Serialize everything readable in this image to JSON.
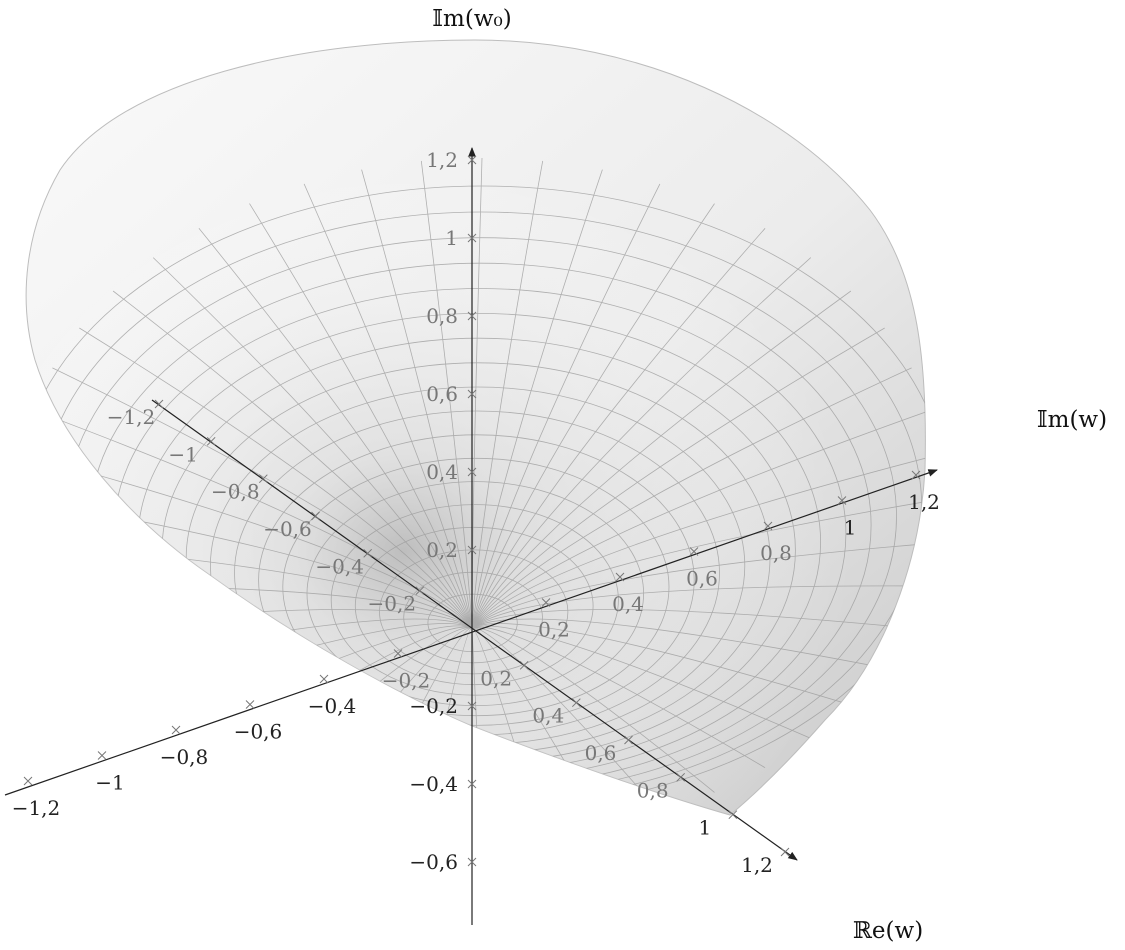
{
  "axes": {
    "im_w0": {
      "title": "𝕀m(w₀)",
      "ticks": [
        "1,2",
        "1",
        "0,8",
        "0,6",
        "0,4",
        "0,2",
        "−0,2",
        "−0,4",
        "−0,6"
      ]
    },
    "im_w": {
      "title": "𝕀m(w)",
      "ticks": [
        "1,2",
        "1",
        "0,8",
        "0,6",
        "0,4",
        "0,2",
        "−0,2",
        "−0,4",
        "−0,6",
        "−0,8",
        "−1",
        "−1,2"
      ]
    },
    "re_w": {
      "title": "ℝe(w)",
      "ticks": [
        "1,2",
        "1",
        "0,8",
        "0,6",
        "0,4",
        "0,2",
        "−0,2",
        "−0,4",
        "−0,6",
        "−0,8",
        "−1",
        "−1,2"
      ]
    }
  },
  "colors": {
    "axis": "#222222",
    "grid": "#9a9a9a",
    "tick_gray": "#777777",
    "surface_light": "#f6f6f6",
    "surface_dark": "#cfcfcf"
  }
}
